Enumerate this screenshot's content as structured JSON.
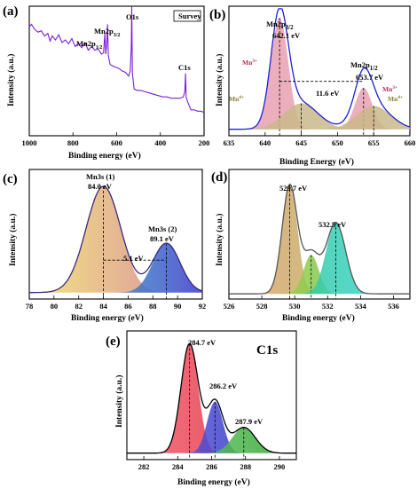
{
  "chart_data": [
    {
      "type": "line",
      "panel_label": "(a)",
      "xlabel": "Binding energy (eV)",
      "ylabel": "Intensity (a.u.)",
      "xlim": [
        1000,
        200
      ],
      "xticks": [
        "1000",
        "800",
        "600",
        "400",
        "200"
      ],
      "legend": "Survey",
      "series_color": "#7b1fd6",
      "annotations": [
        {
          "text": "O1s",
          "x": 531
        },
        {
          "text": "Mn2p",
          "sub": "3/2",
          "x": 642
        },
        {
          "text": "Mn2p",
          "sub": "1/2",
          "x": 654
        },
        {
          "text": "C1s",
          "x": 285
        }
      ],
      "series": [
        {
          "x": [
            1000,
            990,
            975,
            960,
            945,
            930,
            915,
            905,
            895,
            880,
            865,
            850,
            835,
            820,
            805,
            790,
            775,
            760,
            745,
            730,
            715,
            700,
            685,
            670,
            660,
            654,
            650,
            645,
            642,
            638,
            630,
            620,
            605,
            590,
            575,
            560,
            545,
            538,
            533,
            531,
            528,
            520,
            505,
            490,
            470,
            450,
            430,
            410,
            390,
            370,
            350,
            330,
            310,
            295,
            288,
            285,
            282,
            275,
            260,
            245,
            230,
            215,
            200
          ],
          "y": [
            0.84,
            0.86,
            0.82,
            0.8,
            0.81,
            0.77,
            0.79,
            0.73,
            0.77,
            0.74,
            0.78,
            0.72,
            0.74,
            0.71,
            0.75,
            0.69,
            0.71,
            0.68,
            0.72,
            0.66,
            0.69,
            0.66,
            0.67,
            0.63,
            0.64,
            0.79,
            0.63,
            0.72,
            0.86,
            0.62,
            0.55,
            0.54,
            0.53,
            0.52,
            0.5,
            0.49,
            0.46,
            0.5,
            0.7,
            1.0,
            0.48,
            0.36,
            0.35,
            0.35,
            0.34,
            0.33,
            0.32,
            0.31,
            0.3,
            0.3,
            0.29,
            0.29,
            0.29,
            0.3,
            0.34,
            0.48,
            0.3,
            0.26,
            0.2,
            0.2,
            0.19,
            0.19,
            0.18
          ]
        }
      ]
    },
    {
      "type": "area",
      "panel_label": "(b)",
      "xlabel": "Binding Energy (eV)",
      "ylabel": "Intensity (a.u.)",
      "xlim": [
        635,
        660
      ],
      "xticks": [
        "635",
        "640",
        "645",
        "650",
        "655",
        "660"
      ],
      "annotations": [
        {
          "text": "Mn2p",
          "sub": "3/2",
          "x": 642.1,
          "value": "642.1 eV"
        },
        {
          "text": "Mn2p",
          "sub": "1/2",
          "x": 653.7,
          "value": "653.7 eV"
        },
        {
          "text": "11.6 eV"
        },
        {
          "text": "Mn",
          "sup": "3+"
        },
        {
          "text": "Mn",
          "sup": "4+"
        },
        {
          "text": "Mn",
          "sup": "3+"
        },
        {
          "text": "Mn",
          "sup": "4+"
        }
      ],
      "envelope": {
        "color": "#1f1fd6"
      },
      "peaks": [
        {
          "name": "Mn3+",
          "center": 642.0,
          "height": 0.86,
          "fwhm": 2.8,
          "color": "#e8a0b0"
        },
        {
          "name": "Mn4+",
          "center": 645.0,
          "height": 0.2,
          "fwhm": 5.5,
          "color": "#c9b98a"
        },
        {
          "name": "Mn3+",
          "center": 653.6,
          "height": 0.32,
          "fwhm": 2.8,
          "color": "#e8a0b0"
        },
        {
          "name": "Mn4+",
          "center": 655.0,
          "height": 0.18,
          "fwhm": 5.5,
          "color": "#c9b98a"
        }
      ],
      "baseline": 0.05
    },
    {
      "type": "area",
      "panel_label": "(c)",
      "xlabel": "Binding energy (eV)",
      "ylabel": "Intensity (a.u.)",
      "xlim": [
        78,
        92
      ],
      "xticks": [
        "78",
        "80",
        "82",
        "84",
        "86",
        "88",
        "90",
        "92"
      ],
      "annotations": [
        {
          "text": "Mn3s (1)",
          "x": 84.0,
          "value": "84.0 eV"
        },
        {
          "text": "Mn3s (2)",
          "x": 89.1,
          "value": "89.1 eV"
        },
        {
          "text": "5.1 eV"
        }
      ],
      "envelope": {
        "color": "#3a2a7a"
      },
      "peaks": [
        {
          "name": "Mn3s (1)",
          "center": 84.0,
          "height": 0.82,
          "fwhm": 3.3,
          "colors": [
            "#f2e070",
            "#d07890"
          ]
        },
        {
          "name": "Mn3s (2)",
          "center": 89.1,
          "height": 0.38,
          "fwhm": 2.6,
          "colors": [
            "#4de0d0",
            "#3a3ac8"
          ]
        }
      ],
      "baseline": 0.05
    },
    {
      "type": "area",
      "panel_label": "(d)",
      "xlabel": "Binding energy (eV)",
      "ylabel": "Intensity (a.u.)",
      "xlim": [
        526,
        537
      ],
      "xticks": [
        "526",
        "528",
        "530",
        "532",
        "534",
        "536"
      ],
      "annotations": [
        {
          "text": "529.7 eV",
          "x": 529.7
        },
        {
          "text": "532.5 eV",
          "x": 532.5
        }
      ],
      "envelope": {
        "color": "#555555"
      },
      "peaks": [
        {
          "name": "529.7 eV",
          "center": 529.7,
          "height": 0.84,
          "fwhm": 1.1,
          "colors": [
            "#e6a070",
            "#a0c060"
          ]
        },
        {
          "name": "531.0 eV",
          "center": 531.0,
          "height": 0.3,
          "fwhm": 1.1,
          "colors": [
            "#c8e040",
            "#40b060"
          ]
        },
        {
          "name": "532.5 eV",
          "center": 532.5,
          "height": 0.55,
          "fwhm": 1.4,
          "colors": [
            "#40c080",
            "#30d8d8"
          ]
        }
      ],
      "baseline": 0.04
    },
    {
      "type": "area",
      "panel_label": "(e)",
      "title": "C1s",
      "xlabel": "Binding energy (eV)",
      "ylabel": "Intensity (a.u.)",
      "xlim": [
        281,
        291
      ],
      "xticks": [
        "282",
        "284",
        "286",
        "288",
        "290"
      ],
      "annotations": [
        {
          "text": "284.7 eV",
          "x": 284.7
        },
        {
          "text": "286.2 eV",
          "x": 286.2
        },
        {
          "text": "287.9 eV",
          "x": 287.9
        }
      ],
      "envelope": {
        "color": "#000000"
      },
      "peaks": [
        {
          "name": "284.7 eV",
          "center": 284.7,
          "height": 0.85,
          "fwhm": 1.2,
          "colors": [
            "#f06070",
            "#e02030"
          ]
        },
        {
          "name": "286.2 eV",
          "center": 286.2,
          "height": 0.4,
          "fwhm": 1.1,
          "colors": [
            "#7070e0",
            "#2020c0"
          ]
        },
        {
          "name": "287.9 eV",
          "center": 287.9,
          "height": 0.2,
          "fwhm": 1.6,
          "colors": [
            "#80e080",
            "#30a030"
          ]
        }
      ],
      "baseline": 0.05
    }
  ]
}
